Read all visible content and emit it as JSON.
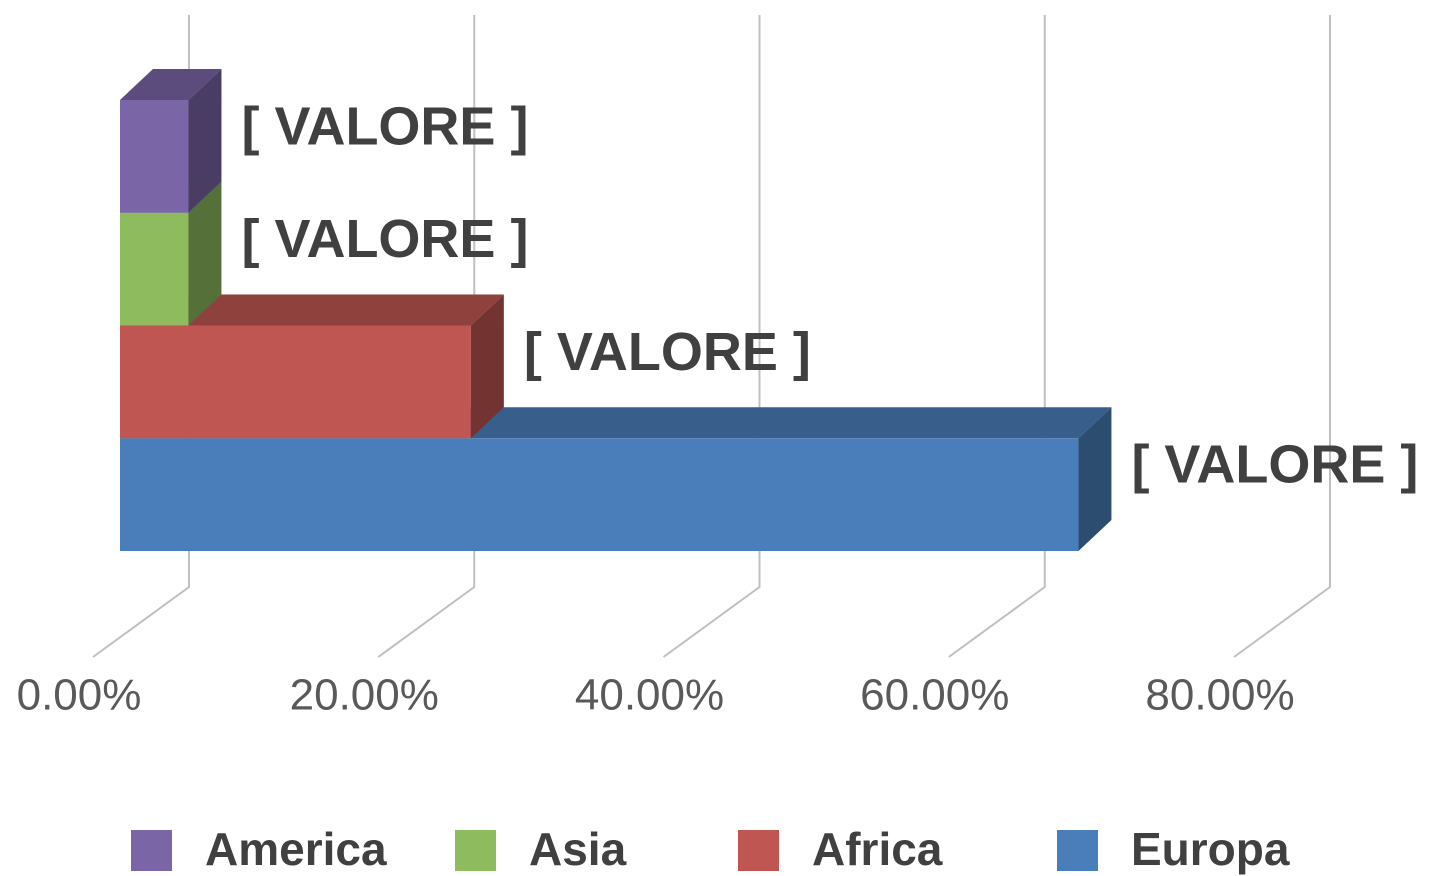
{
  "chart_data": {
    "type": "bar3d",
    "categories": [
      null
    ],
    "series": [
      {
        "name": "America",
        "color": "#7a65a7",
        "values": [
          4.8
        ],
        "value_labels": [
          "[ VALORE ]"
        ]
      },
      {
        "name": "Asia",
        "color": "#8fbb5f",
        "values": [
          4.8
        ],
        "value_labels": [
          "[ VALORE ]"
        ]
      },
      {
        "name": "Africa",
        "color": "#bf5651",
        "values": [
          24.6
        ],
        "value_labels": [
          "[ VALORE ]"
        ]
      },
      {
        "name": "Europa",
        "color": "#4a7ebb",
        "values": [
          67.2
        ],
        "value_labels": [
          "[ VALORE ]"
        ]
      }
    ],
    "xlim": [
      0,
      80
    ],
    "xticks": [
      {
        "value": 0,
        "label": "0.00%"
      },
      {
        "value": 20,
        "label": "20.00%"
      },
      {
        "value": 40,
        "label": "40.00%"
      },
      {
        "value": 60,
        "label": "60.00%"
      },
      {
        "value": 80,
        "label": "80.00%"
      }
    ],
    "grid": true,
    "legend": "bottom"
  }
}
